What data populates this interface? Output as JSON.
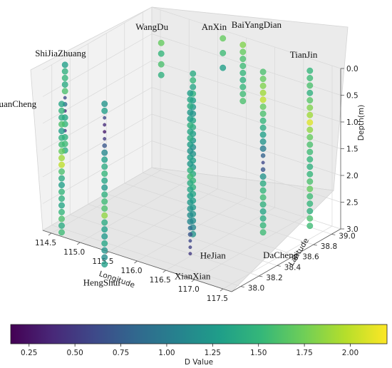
{
  "chart_data": {
    "type": "scatter3d",
    "x_axis": {
      "label": "Longitude",
      "ticks": [
        "114.5",
        "115.0",
        "115.5",
        "116.0",
        "116.5",
        "117.0",
        "117.5"
      ],
      "range": [
        114.35,
        117.65
      ]
    },
    "y_axis": {
      "label": "Latitude",
      "ticks": [
        "38.0",
        "38.2",
        "38.4",
        "38.6",
        "38.8",
        "39.0"
      ],
      "range": [
        37.9,
        39.1
      ]
    },
    "z_axis": {
      "label": "Depth(m)",
      "ticks": [
        "0.0",
        "0.5",
        "1.0",
        "1.5",
        "2.0",
        "2.5",
        "3.0"
      ],
      "range": [
        0,
        3.0
      ],
      "inverted": true
    },
    "colorbar": {
      "label": "D Value",
      "ticks": [
        "0.25",
        "0.50",
        "0.75",
        "1.00",
        "1.25",
        "1.50",
        "1.75",
        "2.00"
      ],
      "range": [
        0.15,
        2.2
      ],
      "colormap": [
        "#440154",
        "#482878",
        "#3e4989",
        "#31688e",
        "#26828e",
        "#1f9e89",
        "#35b779",
        "#6ece58",
        "#b5de2b",
        "#fde725"
      ]
    },
    "sites": [
      {
        "name": "LuanCheng",
        "lon": 114.6,
        "lat": 37.95,
        "depth_from": 0.6,
        "depth_to": 3.0,
        "count": 20,
        "d_values": [
          1.35,
          1.5,
          1.4,
          1.6,
          1.3,
          1.45,
          1.55,
          1.7,
          1.9,
          2.0,
          1.6,
          1.4,
          1.3,
          1.5,
          1.45,
          1.35,
          1.5,
          1.6,
          1.4,
          1.55
        ]
      },
      {
        "name": "ShiJiaZhuang",
        "lon": 114.5,
        "lat": 38.05,
        "depth_from": 0.0,
        "depth_to": 1.6,
        "count": 14,
        "d_values": [
          1.3,
          1.45,
          1.5,
          1.4,
          1.6,
          0.6,
          0.9,
          0.4,
          1.35,
          1.5,
          0.5,
          1.45,
          1.55,
          1.4
        ]
      },
      {
        "name": "HengShui",
        "lon": 115.7,
        "lat": 37.73,
        "depth_from": 0.0,
        "depth_to": 3.0,
        "count": 24,
        "d_values": [
          1.2,
          1.3,
          0.6,
          0.4,
          0.3,
          0.5,
          0.7,
          1.1,
          1.3,
          1.4,
          1.5,
          1.35,
          1.25,
          1.45,
          1.55,
          1.6,
          1.85,
          1.4,
          1.3,
          1.25,
          1.35,
          1.2,
          1.15,
          1.3
        ]
      },
      {
        "name": "WangDu",
        "lon": 115.15,
        "lat": 38.7,
        "depth_from": 0.0,
        "depth_to": 0.6,
        "count": 4,
        "d_values": [
          1.7,
          1.5,
          1.6,
          1.45
        ]
      },
      {
        "name": "XianXian",
        "lon": 116.45,
        "lat": 38.2,
        "depth_from": 0.0,
        "depth_to": 3.0,
        "count": 26,
        "d_values": [
          1.3,
          1.35,
          1.4,
          1.25,
          1.3,
          1.45,
          1.35,
          1.4,
          1.3,
          1.2,
          1.3,
          1.25,
          1.45,
          1.55,
          1.4,
          1.35,
          1.3,
          1.25,
          1.2,
          1.15,
          1.1,
          0.9,
          0.7,
          0.6,
          0.55,
          0.5
        ]
      },
      {
        "name": "HeJian",
        "lon": 116.1,
        "lat": 38.45,
        "depth_from": 0.0,
        "depth_to": 3.0,
        "count": 25,
        "d_values": [
          1.4,
          1.5,
          1.35,
          1.45,
          1.3,
          1.25,
          1.2,
          1.35,
          1.4,
          1.3,
          1.25,
          1.15,
          1.2,
          1.3,
          1.25,
          1.4,
          1.5,
          1.45,
          1.35,
          1.3,
          1.25,
          1.2,
          1.15,
          1.1,
          1.2
        ]
      },
      {
        "name": "AnXin",
        "lon": 115.75,
        "lat": 39.0,
        "depth_from": 0.0,
        "depth_to": 0.55,
        "count": 3,
        "d_values": [
          1.7,
          1.55,
          1.3
        ]
      },
      {
        "name": "BaiYangDian",
        "lon": 116.1,
        "lat": 39.0,
        "depth_from": 0.0,
        "depth_to": 1.05,
        "count": 9,
        "d_values": [
          1.8,
          1.7,
          1.6,
          1.55,
          1.5,
          1.45,
          1.5,
          1.55,
          1.6
        ]
      },
      {
        "name": "DaCheng",
        "lon": 116.85,
        "lat": 38.75,
        "depth_from": 0.0,
        "depth_to": 3.0,
        "count": 24,
        "d_values": [
          1.6,
          1.7,
          1.8,
          1.9,
          2.0,
          1.7,
          1.6,
          1.5,
          1.4,
          1.3,
          1.2,
          1.0,
          0.8,
          0.6,
          0.7,
          1.2,
          1.4,
          1.5,
          1.55,
          1.45,
          1.35,
          1.4,
          1.5,
          1.55
        ]
      },
      {
        "name": "TianJin",
        "lon": 117.35,
        "lat": 38.95,
        "depth_from": 0.0,
        "depth_to": 2.9,
        "count": 22,
        "d_values": [
          1.5,
          1.55,
          1.6,
          1.45,
          1.65,
          1.8,
          1.9,
          2.1,
          1.85,
          1.7,
          1.6,
          1.55,
          1.5,
          1.45,
          1.5,
          1.6,
          1.7,
          1.55,
          1.5,
          1.45,
          1.6,
          1.55
        ]
      }
    ]
  }
}
